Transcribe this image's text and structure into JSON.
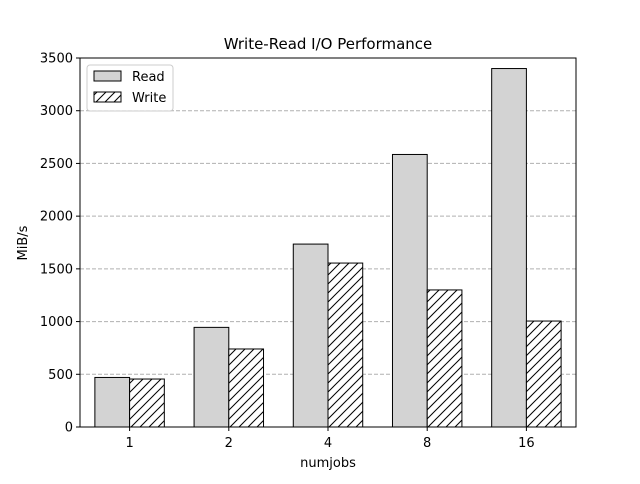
{
  "chart_data": {
    "type": "bar",
    "title": "Write-Read I/O Performance",
    "xlabel": "numjobs",
    "ylabel": "MiB/s",
    "categories": [
      "1",
      "2",
      "4",
      "8",
      "16"
    ],
    "ylim": [
      0,
      3500
    ],
    "yticks": [
      0,
      500,
      1000,
      1500,
      2000,
      2500,
      3000,
      3500
    ],
    "grid": "y-dashed",
    "legend_position": "top-left",
    "series": [
      {
        "name": "Read",
        "values": [
          470,
          945,
          1735,
          2585,
          3400
        ],
        "fill": "#d3d3d3",
        "pattern": "none"
      },
      {
        "name": "Write",
        "values": [
          455,
          740,
          1555,
          1300,
          1005
        ],
        "fill": "#ffffff",
        "pattern": "hatch"
      }
    ]
  }
}
